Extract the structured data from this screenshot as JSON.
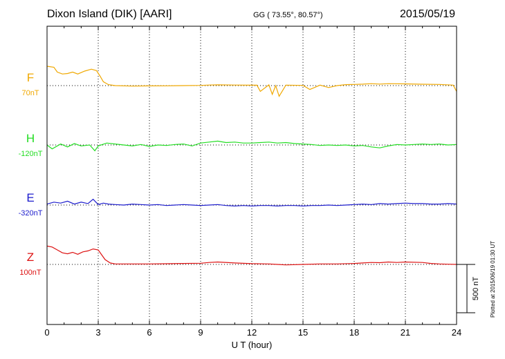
{
  "header": {
    "title": "Dixon Island (DIK)  [AARI]",
    "coords": "GG ( 73.55°,  80.57°)",
    "date": "2015/05/19"
  },
  "footer_note": "Plotted at 2015/06/19 01:30 UT",
  "chart_data": {
    "type": "line",
    "xlabel": "U T (hour)",
    "xlim": [
      0,
      24
    ],
    "x_ticks": [
      "0",
      "3",
      "6",
      "9",
      "12",
      "15",
      "18",
      "21",
      "24"
    ],
    "scale_bar": {
      "label": "500 nT",
      "value_nT": 500
    },
    "units": "nT",
    "series": [
      {
        "name": "F",
        "baseline": "70nT",
        "color": "#f0a800",
        "x": [
          0,
          0.4,
          0.6,
          0.9,
          1.2,
          1.5,
          1.8,
          2.2,
          2.6,
          2.9,
          3.1,
          3.3,
          3.6,
          4.0,
          5,
          6,
          7,
          8,
          9,
          9.5,
          10,
          11,
          12,
          12.3,
          12.5,
          13,
          13.2,
          13.4,
          13.6,
          14,
          15,
          15.4,
          16,
          16.5,
          17,
          17.5,
          18,
          18.5,
          19,
          19.5,
          20,
          21,
          22,
          23,
          23.8,
          24
        ],
        "y": [
          200,
          190,
          140,
          120,
          125,
          140,
          120,
          150,
          170,
          155,
          100,
          40,
          10,
          0,
          -5,
          -3,
          -2,
          0,
          2,
          6,
          8,
          6,
          4,
          5,
          -60,
          8,
          -90,
          0,
          -110,
          5,
          2,
          -40,
          5,
          -20,
          0,
          10,
          12,
          15,
          20,
          16,
          20,
          18,
          14,
          12,
          5,
          -60
        ]
      },
      {
        "name": "H",
        "baseline": "-120nT",
        "color": "#22dd22",
        "x": [
          0,
          0.3,
          0.8,
          1.2,
          1.6,
          2,
          2.5,
          2.8,
          3.0,
          3.5,
          4,
          4.5,
          5,
          5.5,
          6,
          6.5,
          7,
          7.5,
          8,
          8.5,
          9,
          9.5,
          10,
          10.5,
          11,
          11.5,
          12,
          12.5,
          13,
          13.5,
          14,
          14.5,
          15,
          15.5,
          16,
          16.5,
          17,
          17.5,
          18,
          18.5,
          19,
          19.5,
          20,
          20.5,
          21,
          21.5,
          22,
          22.5,
          23,
          23.5,
          24
        ],
        "y": [
          0,
          -40,
          10,
          -20,
          15,
          -10,
          0,
          -60,
          -10,
          20,
          10,
          0,
          -10,
          5,
          -15,
          0,
          -5,
          5,
          10,
          -10,
          20,
          30,
          40,
          25,
          30,
          20,
          20,
          25,
          30,
          20,
          25,
          15,
          10,
          5,
          -5,
          0,
          -5,
          0,
          -10,
          -5,
          -20,
          -30,
          -10,
          5,
          0,
          5,
          10,
          5,
          10,
          0,
          5
        ]
      },
      {
        "name": "E",
        "baseline": "-320nT",
        "color": "#1a1acc",
        "x": [
          0,
          0.4,
          0.8,
          1.2,
          1.6,
          2,
          2.4,
          2.7,
          3.0,
          3.3,
          3.6,
          4,
          4.5,
          5,
          5.5,
          6,
          6.5,
          7,
          7.5,
          8,
          8.5,
          9,
          9.5,
          10,
          10.5,
          11,
          11.5,
          12,
          12.5,
          13,
          13.5,
          14,
          14.5,
          15,
          15.5,
          16,
          16.5,
          17,
          17.5,
          18,
          18.5,
          19,
          19.5,
          20,
          20.5,
          21,
          21.5,
          22,
          22.5,
          23,
          23.5,
          24
        ],
        "y": [
          10,
          30,
          20,
          40,
          10,
          30,
          15,
          60,
          5,
          20,
          10,
          5,
          0,
          10,
          5,
          0,
          5,
          -5,
          0,
          5,
          0,
          -5,
          0,
          5,
          -5,
          -10,
          -5,
          -10,
          -5,
          -5,
          -10,
          -5,
          -5,
          -10,
          -5,
          -5,
          0,
          -5,
          0,
          5,
          10,
          5,
          15,
          10,
          15,
          20,
          15,
          15,
          10,
          10,
          15,
          10
        ]
      },
      {
        "name": "Z",
        "baseline": "100nT",
        "color": "#dd1111",
        "x": [
          0,
          0.3,
          0.6,
          0.9,
          1.2,
          1.5,
          1.8,
          2.1,
          2.4,
          2.7,
          3.0,
          3.2,
          3.4,
          3.7,
          4.0,
          5,
          6,
          7,
          8,
          9,
          9.5,
          10,
          11,
          12,
          13,
          13.5,
          14,
          15,
          16,
          17,
          18,
          18.5,
          19,
          19.5,
          20,
          20.5,
          21,
          22,
          22.5,
          23,
          23.5,
          24
        ],
        "y": [
          190,
          180,
          150,
          120,
          110,
          125,
          105,
          130,
          140,
          160,
          150,
          100,
          50,
          15,
          5,
          5,
          5,
          7,
          10,
          12,
          20,
          25,
          15,
          8,
          5,
          0,
          -5,
          0,
          5,
          5,
          10,
          15,
          20,
          18,
          25,
          20,
          25,
          20,
          10,
          5,
          2,
          0
        ]
      }
    ]
  }
}
